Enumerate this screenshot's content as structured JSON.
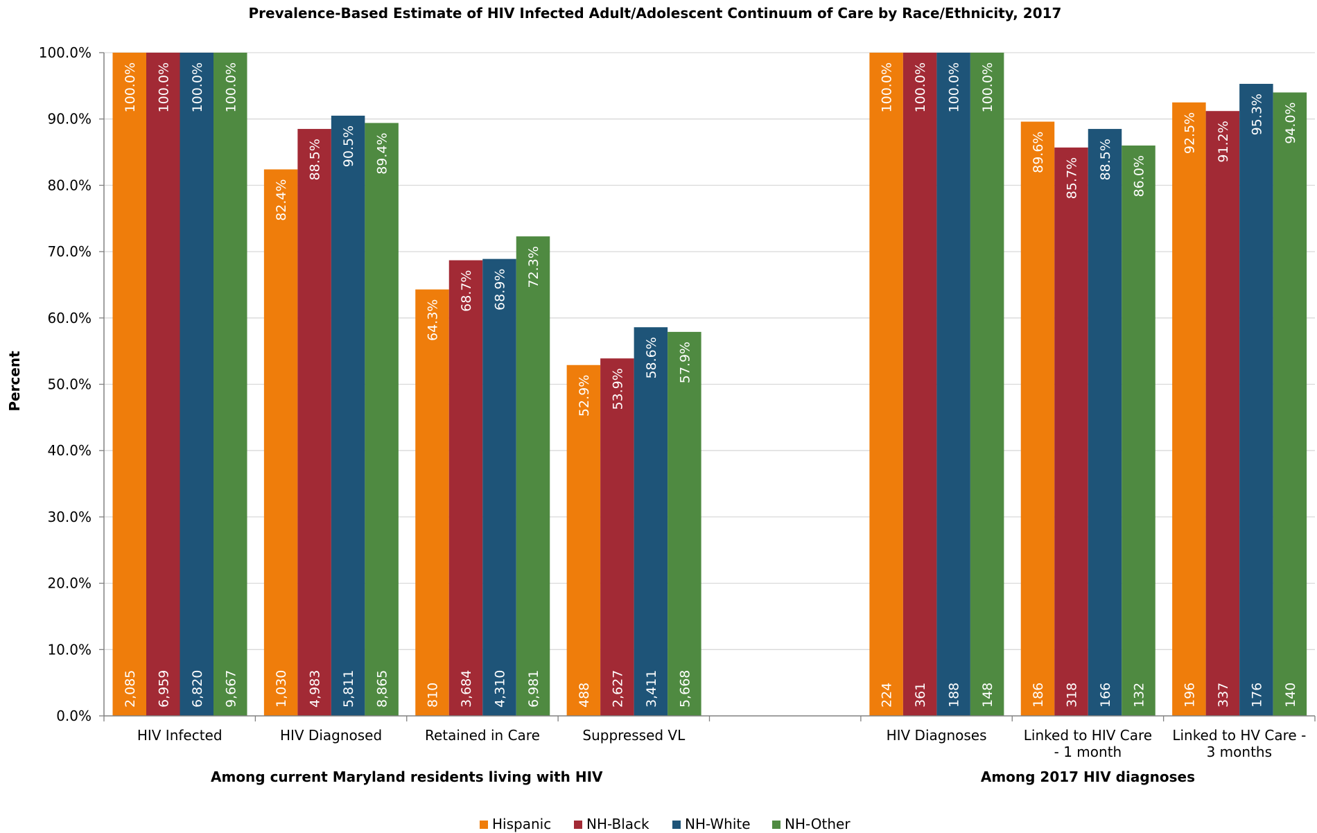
{
  "chart_data": {
    "type": "bar",
    "title": "Prevalence-Based Estimate of HIV Infected Adult/Adolescent Continuum of Care by Race/Ethnicity, 2017",
    "ylabel": "Percent",
    "ylim": [
      0,
      100
    ],
    "yticks": [
      "0.0%",
      "10.0%",
      "20.0%",
      "30.0%",
      "40.0%",
      "50.0%",
      "60.0%",
      "70.0%",
      "80.0%",
      "90.0%",
      "100.0%"
    ],
    "grid": true,
    "legend_position": "bottom",
    "categories": [
      [
        "HIV Infected"
      ],
      [
        "HIV Diagnosed"
      ],
      [
        "Retained in Care"
      ],
      [
        "Suppressed VL"
      ],
      [
        ""
      ],
      [
        "HIV Diagnoses"
      ],
      [
        "Linked to HIV Care",
        "- 1 month"
      ],
      [
        "Linked to HV Care -",
        "3 months"
      ]
    ],
    "groups": [
      {
        "label": "Among current Maryland residents living with HIV"
      },
      {
        "label": "Among 2017 HIV diagnoses"
      }
    ],
    "series": [
      {
        "name": "Hispanic",
        "color": "#ef7d0b",
        "values": [
          100.0,
          82.4,
          64.3,
          52.9,
          null,
          100.0,
          89.6,
          92.5
        ],
        "pct_labels": [
          "100.0%",
          "82.4%",
          "64.3%",
          "52.9%",
          "",
          "100.0%",
          "89.6%",
          "92.5%"
        ],
        "count_labels": [
          "2,085",
          "1,030",
          "810",
          "488",
          "",
          "224",
          "186",
          "196"
        ]
      },
      {
        "name": "NH-Black",
        "color": "#a22a35",
        "values": [
          100.0,
          88.5,
          68.7,
          53.9,
          null,
          100.0,
          85.7,
          91.2
        ],
        "pct_labels": [
          "100.0%",
          "88.5%",
          "68.7%",
          "53.9%",
          "",
          "100.0%",
          "85.7%",
          "91.2%"
        ],
        "count_labels": [
          "6,959",
          "4,983",
          "3,684",
          "2,627",
          "",
          "361",
          "318",
          "337"
        ]
      },
      {
        "name": "NH-White",
        "color": "#1e5478",
        "values": [
          100.0,
          90.5,
          68.9,
          58.6,
          null,
          100.0,
          88.5,
          95.3
        ],
        "pct_labels": [
          "100.0%",
          "90.5%",
          "68.9%",
          "58.6%",
          "",
          "100.0%",
          "88.5%",
          "95.3%"
        ],
        "count_labels": [
          "6,820",
          "5,811",
          "4,310",
          "3,411",
          "",
          "188",
          "166",
          "176"
        ]
      },
      {
        "name": "NH-Other",
        "color": "#4f8a41",
        "values": [
          100.0,
          89.4,
          72.3,
          57.9,
          null,
          100.0,
          86.0,
          94.0
        ],
        "pct_labels": [
          "100.0%",
          "89.4%",
          "72.3%",
          "57.9%",
          "",
          "100.0%",
          "86.0%",
          "94.0%"
        ],
        "count_labels": [
          "9,667",
          "8,865",
          "6,981",
          "5,668",
          "",
          "148",
          "132",
          "140"
        ]
      }
    ]
  }
}
